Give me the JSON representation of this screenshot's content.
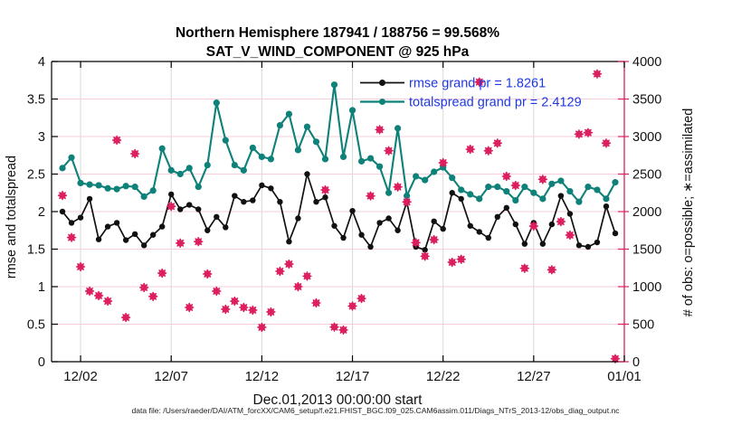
{
  "figure": {
    "title_line1": "Northern Hemisphere 187941 / 188756 = 99.568%",
    "title_line2": "SAT_V_WIND_COMPONENT @ 925 hPa",
    "footer": "data file: /Users/raeder/DAI/ATM_forcXX/CAM6_setup/f.e21.FHIST_BGC.f09_025.CAM6assim.011/Diags_NTrS_2013-12/obs_diag_output.nc"
  },
  "colors": {
    "rmse_line": "#111111",
    "spread_line": "#0e8179",
    "obs_pink": "#dc1e5e",
    "legend_text": "#2038e0",
    "grid_horizontal": "#f6cfda",
    "grid_vertical": "#d9d9d9",
    "spine_black": "#000000",
    "spine_right": "#dc1e5e"
  },
  "chart_data": {
    "type": "line",
    "title": "Northern Hemisphere 187941 / 188756 = 99.568% — SAT_V_WIND_COMPONENT @ 925 hPa",
    "xlabel": "Dec.01,2013 00:00:00 start",
    "ylabel_left": "rmse and totalspread",
    "ylabel_right": "# of obs: o=possible; ∗=assimilated",
    "x_range": [
      -0.6,
      31.0
    ],
    "y_left": {
      "min": 0,
      "max": 4,
      "step": 0.5
    },
    "y_right": {
      "min": 0,
      "max": 4000,
      "step": 500
    },
    "x_ticks": [
      {
        "d": 1,
        "label": "12/02"
      },
      {
        "d": 6,
        "label": "12/07"
      },
      {
        "d": 11,
        "label": "12/12"
      },
      {
        "d": 16,
        "label": "12/17"
      },
      {
        "d": 21,
        "label": "12/22"
      },
      {
        "d": 26,
        "label": "12/27"
      },
      {
        "d": 31,
        "label": "01/01"
      }
    ],
    "x_days": [
      0,
      0.5,
      1,
      1.5,
      2,
      2.5,
      3,
      3.5,
      4,
      4.5,
      5,
      5.5,
      6,
      6.5,
      7,
      7.5,
      8,
      8.5,
      9,
      9.5,
      10,
      10.5,
      11,
      11.5,
      12,
      12.5,
      13,
      13.5,
      14,
      14.5,
      15,
      15.5,
      16,
      16.5,
      17,
      17.5,
      18,
      18.5,
      19,
      19.5,
      20,
      20.5,
      21,
      21.5,
      22,
      22.5,
      23,
      23.5,
      24,
      24.5,
      25,
      25.5,
      26,
      26.5,
      27,
      27.5,
      28,
      28.5,
      29,
      29.5,
      30,
      30.5
    ],
    "series": [
      {
        "name": "rmse grand pr = 1.8261",
        "axis": "left",
        "marker": "filled-circle",
        "values": [
          2.0,
          1.85,
          1.92,
          2.17,
          1.63,
          1.8,
          1.85,
          1.62,
          1.7,
          1.55,
          1.69,
          1.8,
          2.23,
          2.03,
          2.09,
          2.03,
          1.75,
          1.93,
          1.79,
          2.21,
          2.13,
          2.15,
          2.35,
          2.31,
          2.13,
          1.6,
          1.91,
          2.5,
          2.13,
          2.19,
          1.81,
          1.65,
          2.01,
          1.69,
          1.53,
          1.85,
          1.91,
          1.75,
          2.13,
          1.53,
          1.49,
          1.87,
          1.77,
          2.25,
          2.17,
          1.81,
          1.73,
          1.65,
          1.93,
          2.05,
          1.83,
          1.57,
          1.85,
          1.57,
          1.83,
          2.21,
          1.97,
          1.55,
          1.53,
          1.59,
          2.07,
          1.71
        ]
      },
      {
        "name": "totalspread grand pr = 2.4129",
        "axis": "left",
        "marker": "filled-circle",
        "values": [
          2.58,
          2.72,
          2.38,
          2.36,
          2.35,
          2.31,
          2.3,
          2.34,
          2.33,
          2.2,
          2.28,
          2.84,
          2.55,
          2.5,
          2.58,
          2.33,
          2.62,
          3.45,
          2.95,
          2.62,
          2.55,
          2.85,
          2.73,
          2.7,
          3.15,
          3.3,
          2.82,
          3.13,
          2.93,
          2.7,
          3.69,
          2.73,
          3.35,
          2.67,
          2.71,
          2.6,
          2.25,
          3.11,
          2.21,
          2.47,
          2.42,
          2.53,
          2.59,
          2.45,
          2.29,
          2.23,
          2.17,
          2.33,
          2.33,
          2.27,
          2.15,
          2.33,
          2.25,
          2.17,
          2.37,
          2.41,
          2.27,
          2.13,
          2.33,
          2.29,
          2.17,
          2.39
        ]
      },
      {
        "name": "observation count (o=possible, ∗=assimilated)",
        "axis": "right",
        "marker": "circle-plus-asterisk",
        "values": [
          2215,
          1655,
          1265,
          940,
          880,
          807,
          2952,
          590,
          2771,
          988,
          870,
          1180,
          2070,
          1580,
          723,
          1600,
          1169,
          940,
          699,
          807,
          723,
          687,
          458,
          663,
          1205,
          1301,
          1000,
          1140,
          783,
          2289,
          462,
          423,
          742,
          843,
          2209,
          3092,
          2811,
          2329,
          2129,
          1586,
          1405,
          1626,
          2651,
          1325,
          1365,
          2831,
          3727,
          2811,
          2912,
          2470,
          2349,
          1245,
          1807,
          2430,
          1225,
          1867,
          1687,
          3032,
          3052,
          3835,
          2912,
          40
        ]
      }
    ],
    "legend": {
      "position": "top-center-inside",
      "border": "none"
    }
  }
}
